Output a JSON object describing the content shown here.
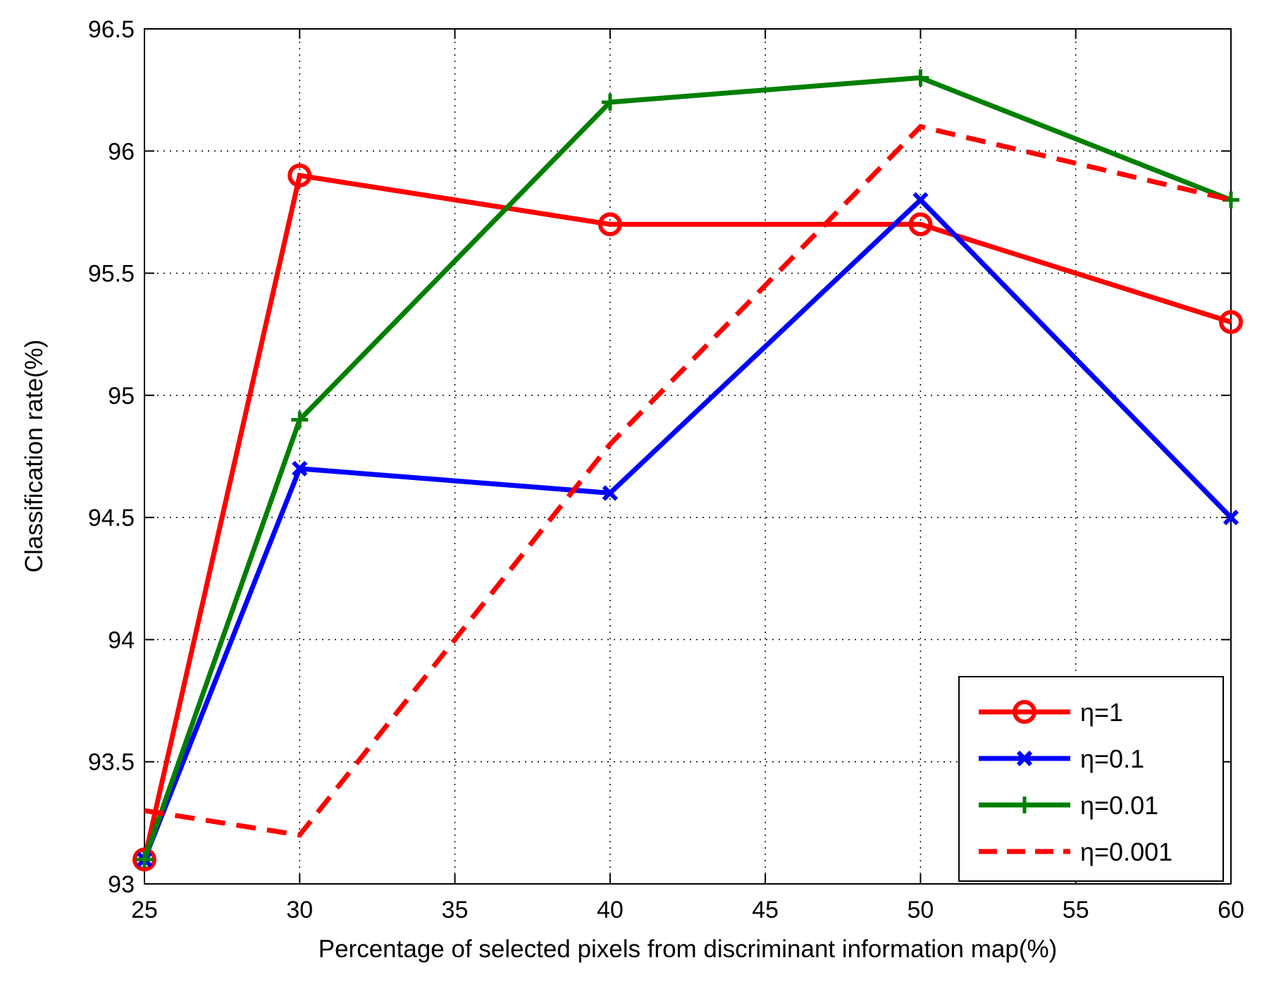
{
  "chart_data": {
    "type": "line",
    "title": "",
    "xlabel": "Percentage of selected pixels from discriminant information map(%)",
    "ylabel": "Classification rate(%)",
    "xlim": [
      25,
      60
    ],
    "ylim": [
      93,
      96.5
    ],
    "xticks": [
      25,
      30,
      35,
      40,
      45,
      50,
      55,
      60
    ],
    "yticks": [
      93,
      93.5,
      94,
      94.5,
      95,
      95.5,
      96,
      96.5
    ],
    "xtick_labels": [
      "25",
      "30",
      "35",
      "40",
      "45",
      "50",
      "55",
      "60"
    ],
    "ytick_labels": [
      "93",
      "93.5",
      "94",
      "94.5",
      "95",
      "95.5",
      "96",
      "96.5"
    ],
    "grid": true,
    "legend_position": "bottom-right",
    "series": [
      {
        "name": "η=1",
        "color": "#ff0000",
        "style": "solid",
        "marker": "circle",
        "x": [
          25,
          30,
          40,
          50,
          60
        ],
        "y": [
          93.1,
          95.9,
          95.7,
          95.7,
          95.3
        ]
      },
      {
        "name": "η=0.1",
        "color": "#0000ff",
        "style": "solid",
        "marker": "x",
        "x": [
          25,
          30,
          40,
          50,
          60
        ],
        "y": [
          93.1,
          94.7,
          94.6,
          95.8,
          94.5
        ]
      },
      {
        "name": "η=0.01",
        "color": "#007f00",
        "style": "solid",
        "marker": "plus",
        "x": [
          25,
          30,
          40,
          50,
          60
        ],
        "y": [
          93.1,
          94.9,
          96.2,
          96.3,
          95.8
        ]
      },
      {
        "name": "η=0.001",
        "color": "#ff0000",
        "style": "dashed",
        "marker": "none",
        "x": [
          25,
          30,
          40,
          50,
          60
        ],
        "y": [
          93.3,
          93.2,
          94.8,
          96.1,
          95.8
        ]
      }
    ]
  }
}
